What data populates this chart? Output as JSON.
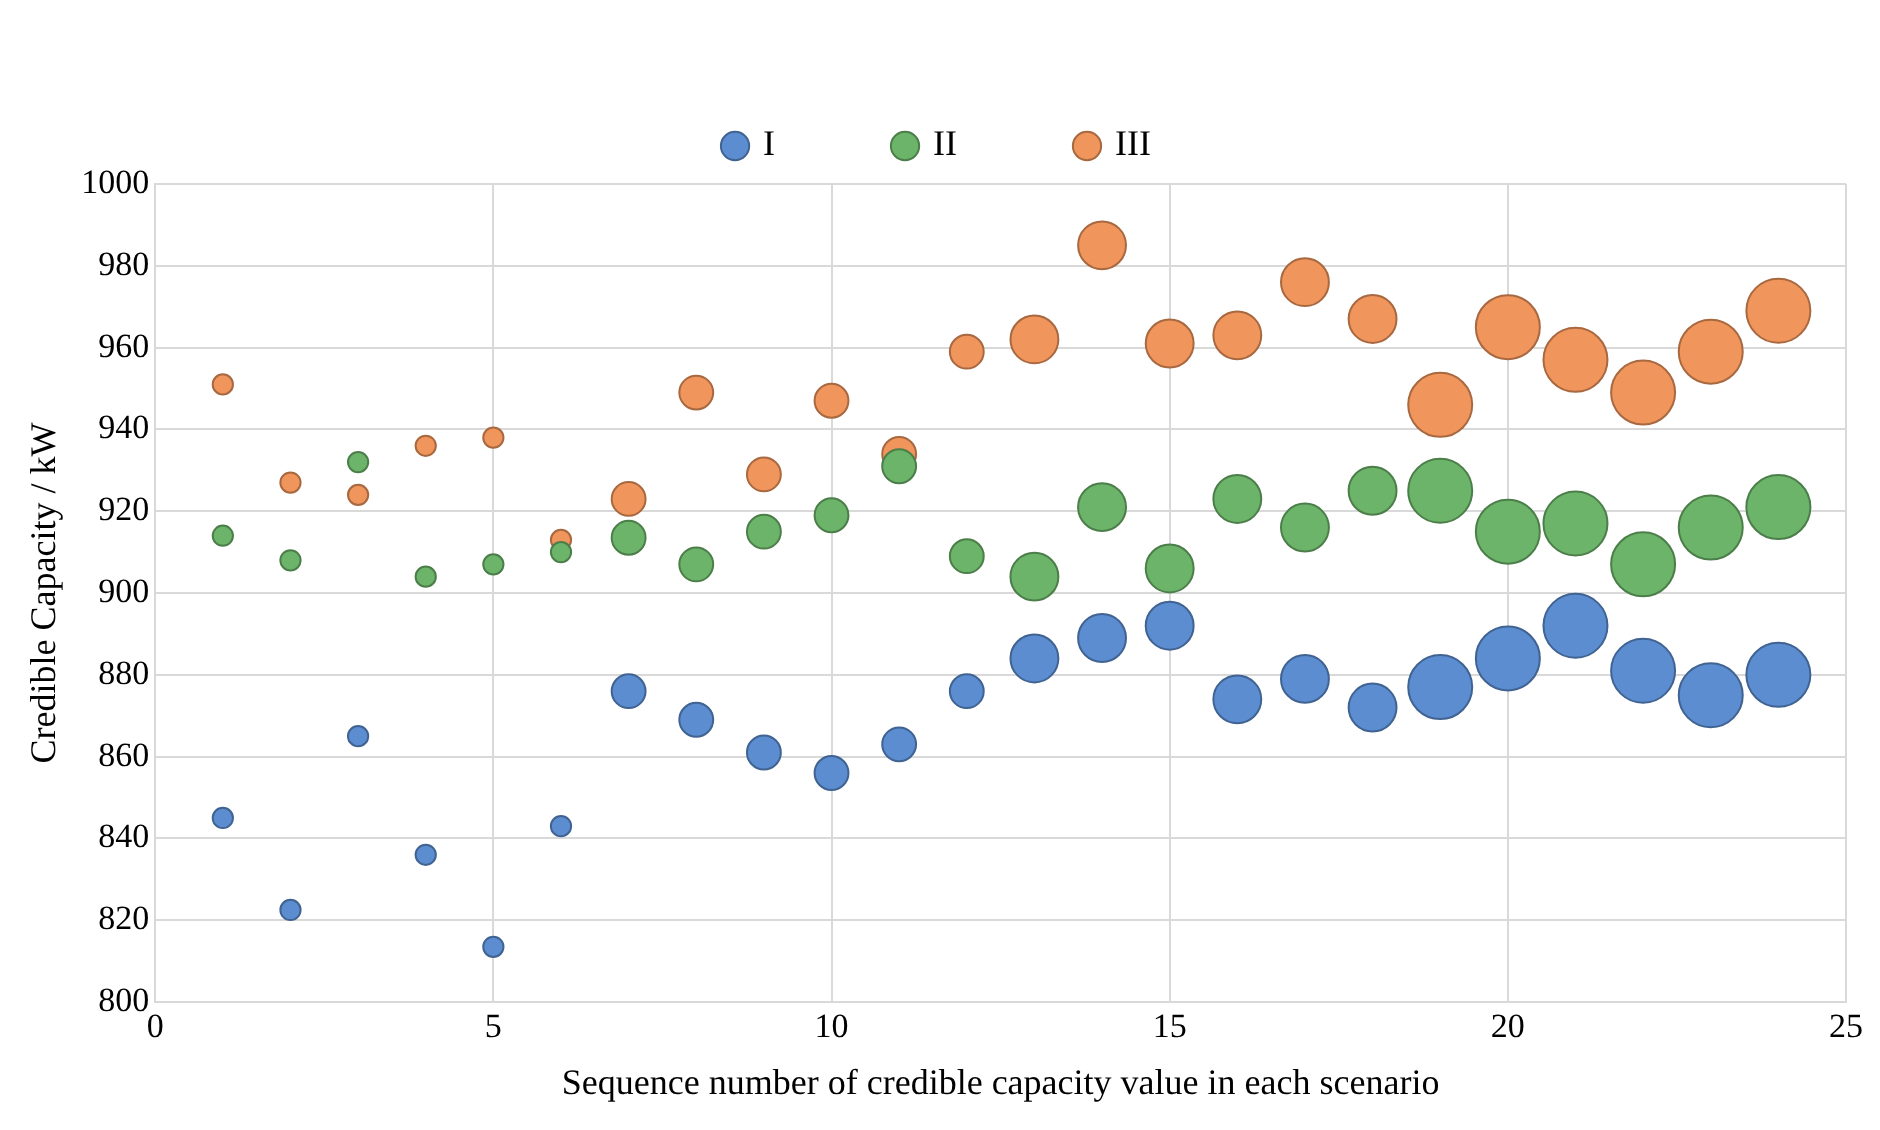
{
  "chart_data": {
    "type": "bubble",
    "xlabel": "Sequence number of credible capacity value in each scenario",
    "ylabel": "Credible Capacity / kW",
    "x": [
      1,
      2,
      3,
      4,
      5,
      6,
      7,
      8,
      9,
      10,
      11,
      12,
      13,
      14,
      15,
      16,
      17,
      18,
      19,
      20,
      21,
      22,
      23,
      24
    ],
    "series": [
      {
        "name": "I",
        "color": "#5b8dd0",
        "values": [
          845,
          822.5,
          865,
          836,
          813.5,
          843,
          876,
          869,
          861,
          856,
          863,
          876,
          884,
          889,
          892,
          874,
          879,
          872,
          877,
          884,
          892,
          881,
          875,
          880
        ],
        "sizes": [
          0.1,
          0.1,
          0.1,
          0.1,
          0.1,
          0.1,
          0.28,
          0.28,
          0.28,
          0.28,
          0.28,
          0.28,
          0.56,
          0.56,
          0.56,
          0.56,
          0.56,
          0.56,
          1,
          1,
          1,
          1,
          1,
          1
        ]
      },
      {
        "name": "II",
        "color": "#6cb46a",
        "values": [
          914,
          908,
          932,
          904,
          907,
          910,
          913.5,
          907,
          915,
          919,
          931,
          909,
          904,
          921,
          906,
          923,
          916,
          925,
          925,
          915,
          917,
          907,
          916,
          921
        ],
        "sizes": [
          0.1,
          0.1,
          0.1,
          0.1,
          0.1,
          0.1,
          0.28,
          0.28,
          0.28,
          0.28,
          0.28,
          0.28,
          0.56,
          0.56,
          0.56,
          0.56,
          0.56,
          0.56,
          1,
          1,
          1,
          1,
          1,
          1
        ]
      },
      {
        "name": "III",
        "color": "#f0955c",
        "values": [
          951,
          927,
          924,
          936,
          938,
          913,
          923,
          949,
          929,
          947,
          934,
          959,
          962,
          985,
          961,
          963,
          976,
          967,
          946,
          965,
          957,
          949,
          959,
          969
        ],
        "sizes": [
          0.1,
          0.1,
          0.1,
          0.1,
          0.1,
          0.1,
          0.28,
          0.28,
          0.28,
          0.28,
          0.28,
          0.28,
          0.56,
          0.56,
          0.56,
          0.56,
          0.56,
          0.56,
          1,
          1,
          1,
          1,
          1,
          1
        ]
      }
    ],
    "xlim": [
      0,
      25
    ],
    "xticks": [
      0,
      5,
      10,
      15,
      20,
      25
    ],
    "ylim": [
      800,
      1000
    ],
    "yticks": [
      800,
      820,
      840,
      860,
      880,
      900,
      920,
      940,
      960,
      980,
      1000
    ],
    "grid": true,
    "legend": "top"
  }
}
